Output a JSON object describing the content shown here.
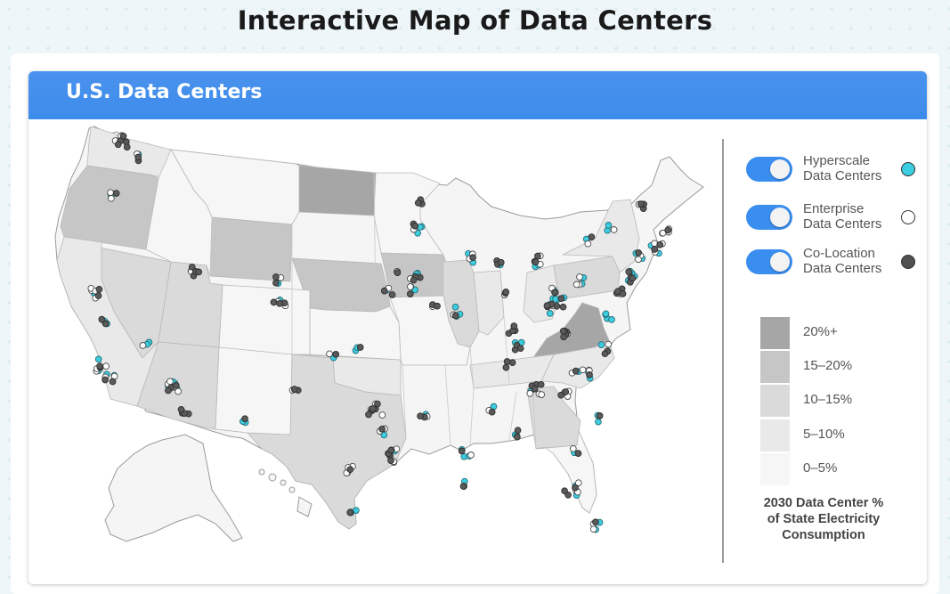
{
  "page": {
    "title": "Interactive Map of Data Centers"
  },
  "card": {
    "title": "U.S. Data Centers"
  },
  "legend": {
    "types": [
      {
        "key": "hyperscale",
        "line1": "Hyperscale",
        "line2": "Data Centers",
        "color": "#3ccde0",
        "on": true
      },
      {
        "key": "enterprise",
        "line1": "Enterprise",
        "line2": "Data Centers",
        "color": "#ffffff",
        "on": true
      },
      {
        "key": "colocation",
        "line1": "Co-Location",
        "line2": "Data Centers",
        "color": "#505050",
        "on": true
      }
    ],
    "scale": [
      {
        "label": "20%+",
        "color": "#a6a6a6"
      },
      {
        "label": "15–20%",
        "color": "#c6c6c6"
      },
      {
        "label": "10–15%",
        "color": "#dadada"
      },
      {
        "label": "5–10%",
        "color": "#e9e9e9"
      },
      {
        "label": "0–5%",
        "color": "#f6f6f6"
      }
    ],
    "scale_title_1": "2030 Data Center %",
    "scale_title_2": "of State Electricity",
    "scale_title_3": "Consumption"
  }
}
